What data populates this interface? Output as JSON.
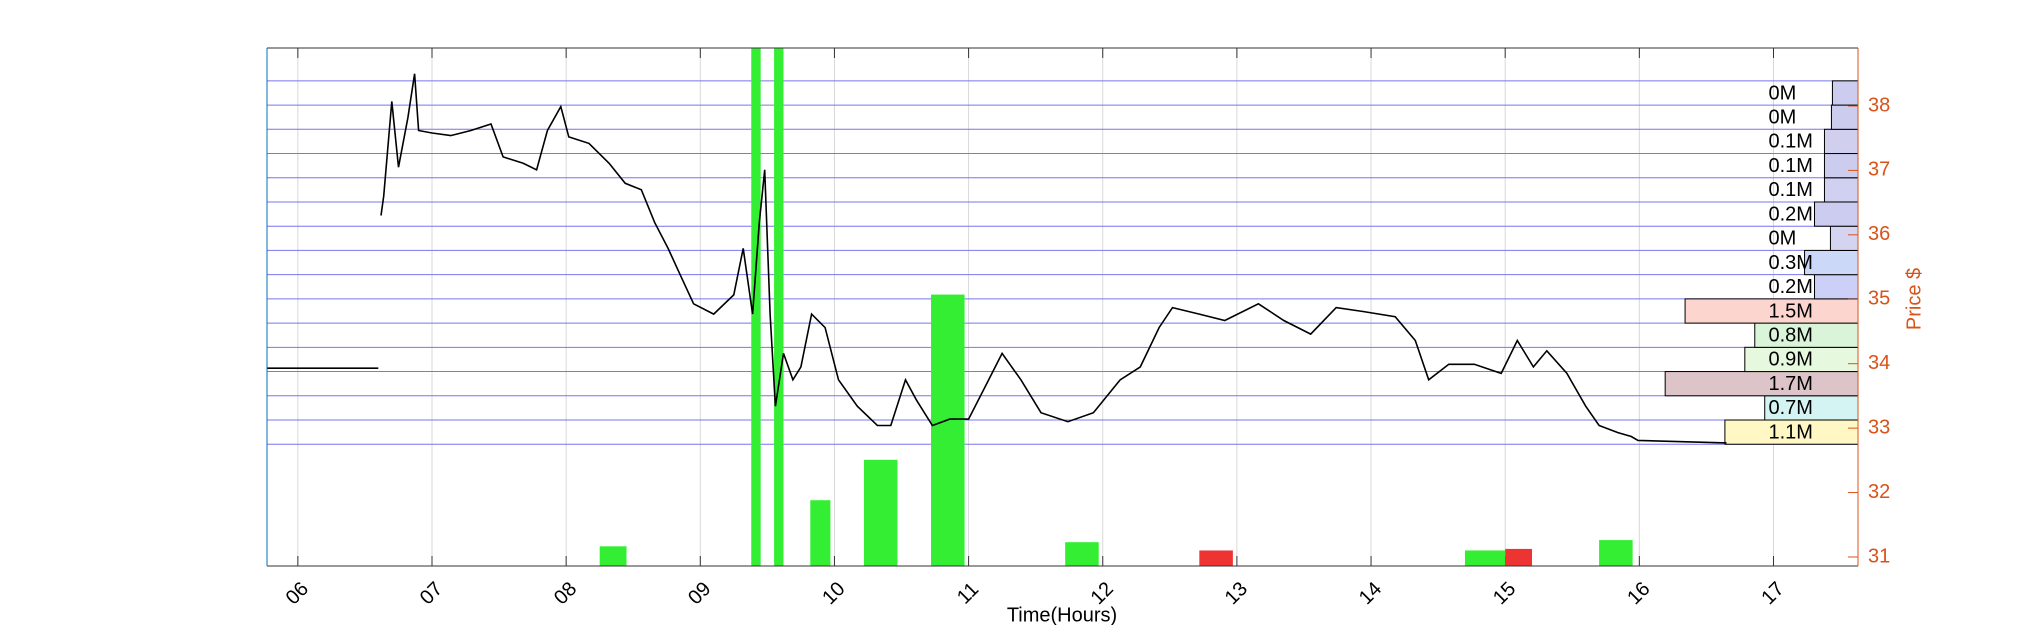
{
  "chart_data": {
    "type": "line",
    "xlabel": "Time(Hours)",
    "ylabel": "Price $",
    "xlim": [
      5.77,
      17.63
    ],
    "xticks": [
      {
        "value": 6,
        "label": "06"
      },
      {
        "value": 7,
        "label": "07"
      },
      {
        "value": 8,
        "label": "08"
      },
      {
        "value": 9,
        "label": "09"
      },
      10,
      11,
      12,
      13,
      14,
      15,
      16,
      17
    ],
    "ylim": [
      30.86,
      38.9
    ],
    "yticks": [
      31,
      32,
      33,
      34,
      35,
      36,
      37,
      38
    ],
    "grid": true,
    "x": [
      5.77,
      6.6,
      6.61,
      6.62,
      6.64,
      6.7,
      6.75,
      6.82,
      6.87,
      6.9,
      7.0,
      7.14,
      7.29,
      7.44,
      7.53,
      7.68,
      7.78,
      7.86,
      7.96,
      8.02,
      8.17,
      8.32,
      8.44,
      8.56,
      8.66,
      8.76,
      8.85,
      8.95,
      9.1,
      9.25,
      9.32,
      9.39,
      9.44,
      9.48,
      9.52,
      9.56,
      9.62,
      9.69,
      9.75,
      9.83,
      9.93,
      10.03,
      10.17,
      10.32,
      10.42,
      10.53,
      10.61,
      10.73,
      10.86,
      11.0,
      11.15,
      11.25,
      11.39,
      11.54,
      11.74,
      11.93,
      12.13,
      12.28,
      12.42,
      12.52,
      12.72,
      12.91,
      13.16,
      13.35,
      13.55,
      13.74,
      13.94,
      14.18,
      14.33,
      14.43,
      14.58,
      14.77,
      14.97,
      15.09,
      15.21,
      15.31,
      15.46,
      15.6,
      15.7,
      15.84,
      15.94,
      15.99,
      16.65
    ],
    "series": [
      {
        "color": "#000000",
        "values": [
          33.93,
          33.93,
          null,
          36.3,
          36.6,
          38.07,
          37.05,
          37.82,
          38.5,
          37.62,
          37.58,
          37.54,
          37.62,
          37.72,
          37.21,
          37.11,
          37.01,
          37.62,
          37.99,
          37.52,
          37.42,
          37.11,
          36.8,
          36.7,
          36.19,
          35.79,
          35.38,
          34.93,
          34.77,
          35.07,
          35.79,
          34.77,
          36.19,
          37.01,
          34.77,
          33.34,
          34.16,
          33.75,
          33.95,
          34.77,
          34.56,
          33.75,
          33.34,
          33.04,
          33.04,
          33.75,
          33.44,
          33.04,
          33.14,
          33.14,
          33.75,
          34.16,
          33.75,
          33.24,
          33.1,
          33.24,
          33.75,
          33.95,
          34.56,
          34.87,
          34.77,
          34.67,
          34.93,
          34.67,
          34.46,
          34.87,
          34.81,
          34.73,
          34.36,
          33.75,
          33.99,
          33.99,
          33.85,
          34.36,
          33.95,
          34.2,
          33.85,
          33.34,
          33.04,
          32.93,
          32.87,
          32.81,
          32.77
        ]
      }
    ],
    "profile": {
      "edges": [
        32.75,
        33.126,
        33.502,
        33.878,
        34.254,
        34.63,
        35.006,
        35.382,
        35.758,
        36.134,
        36.51,
        36.886,
        37.262,
        37.638,
        38.014,
        38.39
      ],
      "values": [
        1.1,
        0.7,
        1.7,
        0.9,
        0.8,
        1.5,
        0.2,
        0.3,
        0.04,
        0.2,
        0.1,
        0.1,
        0.1,
        0.03,
        0.02
      ],
      "value_labels": [
        "1.1M",
        "0.7M",
        "1.7M",
        "0.9M",
        "0.8M",
        "1.5M",
        "0.2M",
        "0.3M",
        "0M",
        "0.2M",
        "0.1M",
        "0.1M",
        "0.1M",
        "0M",
        "0M"
      ],
      "colors": [
        "#fff8c4",
        "#d4f4f4",
        "#dcc4c8",
        "#e6f8de",
        "#daf4da",
        "#fcd6ce",
        "#ccd0f6",
        "#ccd8f8",
        "#d4d4f0",
        "#ccccf0",
        "#d0d0f0",
        "#ccccee",
        "#d0d0ee",
        "#ccccee",
        "#ccccee"
      ]
    },
    "y2lim": [
      0,
      100
    ],
    "volume": {
      "x0": [
        8.25,
        9.38,
        9.55,
        9.82,
        10.22,
        10.72,
        11.72,
        12.72,
        14.7,
        15.0,
        15.7
      ],
      "x1": [
        8.45,
        9.45,
        9.62,
        9.97,
        10.47,
        10.97,
        11.97,
        12.97,
        15.0,
        15.2,
        15.95
      ],
      "values": [
        3.8,
        100,
        100,
        12.7,
        20.5,
        52.4,
        4.6,
        3,
        3,
        3.3,
        5
      ],
      "colors": [
        "#33ee33",
        "#33ee33",
        "#33ee33",
        "#33ee33",
        "#33ee33",
        "#33ee33",
        "#33ee33",
        "#ee3333",
        "#33ee33",
        "#ee3333",
        "#33ee33"
      ]
    }
  }
}
